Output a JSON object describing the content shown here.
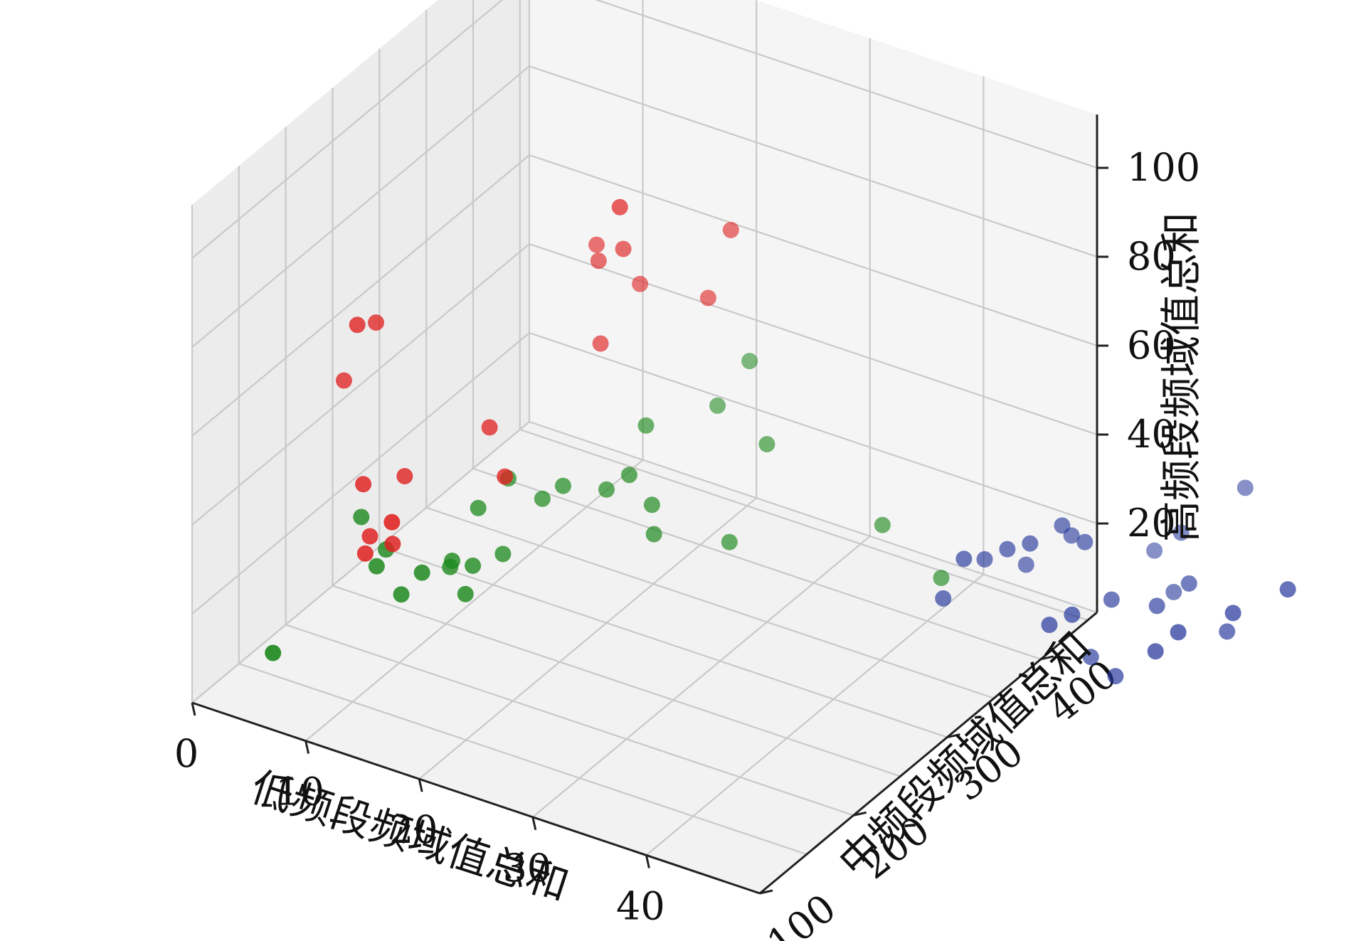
{
  "chart_data": {
    "type": "scatter3d",
    "xlabel": "低频段频域值总和",
    "ylabel": "中频段频域值总和",
    "zlabel": "高频段频域值总和",
    "xlim": [
      0,
      50
    ],
    "ylim": [
      100,
      460
    ],
    "zlim": [
      0,
      112
    ],
    "xticks": [
      0,
      10,
      20,
      30,
      40
    ],
    "yticks": [
      100,
      200,
      300,
      400
    ],
    "zticks": [
      20,
      40,
      60,
      80,
      100
    ],
    "grid": true,
    "series": [
      {
        "color": "#e02020",
        "points": [
          [
            1,
            250,
            47
          ],
          [
            3,
            260,
            60
          ],
          [
            3,
            240,
            63
          ],
          [
            6,
            210,
            35
          ],
          [
            8,
            230,
            35
          ],
          [
            7,
            200,
            22
          ],
          [
            7,
            205,
            25
          ],
          [
            9,
            205,
            25
          ],
          [
            13,
            260,
            45
          ],
          [
            16,
            240,
            40
          ],
          [
            19,
            330,
            78
          ],
          [
            22,
            290,
            97
          ],
          [
            15,
            350,
            72
          ],
          [
            16,
            340,
            71
          ],
          [
            18,
            360,
            64
          ],
          [
            24,
            360,
            66
          ],
          [
            26,
            360,
            83
          ],
          [
            17,
            330,
            55
          ],
          [
            11,
            180,
            36
          ]
        ]
      },
      {
        "color": "#1f8a1f",
        "points": [
          [
            3,
            150,
            5
          ],
          [
            5,
            220,
            25
          ],
          [
            8,
            200,
            20
          ],
          [
            8,
            210,
            22
          ],
          [
            12,
            200,
            22
          ],
          [
            13,
            220,
            22
          ],
          [
            14,
            230,
            20
          ],
          [
            15,
            250,
            20
          ],
          [
            12,
            260,
            26
          ],
          [
            13,
            280,
            30
          ],
          [
            16,
            280,
            28
          ],
          [
            17,
            290,
            30
          ],
          [
            20,
            300,
            30
          ],
          [
            22,
            300,
            35
          ],
          [
            21,
            330,
            40
          ],
          [
            24,
            300,
            30
          ],
          [
            25,
            290,
            26
          ],
          [
            24,
            370,
            40
          ],
          [
            26,
            380,
            50
          ],
          [
            30,
            350,
            40
          ],
          [
            30,
            310,
            25
          ],
          [
            41,
            340,
            33
          ],
          [
            47,
            330,
            28
          ],
          [
            12,
            230,
            18
          ],
          [
            11,
            190,
            18
          ],
          [
            15,
            210,
            18
          ]
        ]
      },
      {
        "color": "#22339a",
        "points": [
          [
            48,
            320,
            26
          ],
          [
            49,
            330,
            34
          ],
          [
            50,
            340,
            33
          ],
          [
            52,
            360,
            30
          ],
          [
            52,
            340,
            37
          ],
          [
            54,
            340,
            40
          ],
          [
            56,
            350,
            44
          ],
          [
            58,
            350,
            42
          ],
          [
            56,
            360,
            40
          ],
          [
            59,
            300,
            33
          ],
          [
            61,
            300,
            37
          ],
          [
            61,
            320,
            24
          ],
          [
            64,
            310,
            24
          ],
          [
            62,
            330,
            36
          ],
          [
            66,
            330,
            38
          ],
          [
            64,
            380,
            44
          ],
          [
            68,
            400,
            54
          ],
          [
            68,
            340,
            43
          ],
          [
            73,
            320,
            40
          ],
          [
            72,
            280,
            46
          ],
          [
            76,
            290,
            52
          ],
          [
            80,
            300,
            59
          ],
          [
            70,
            280,
            40
          ],
          [
            60,
            400,
            33
          ],
          [
            65,
            360,
            35
          ]
        ]
      }
    ]
  }
}
